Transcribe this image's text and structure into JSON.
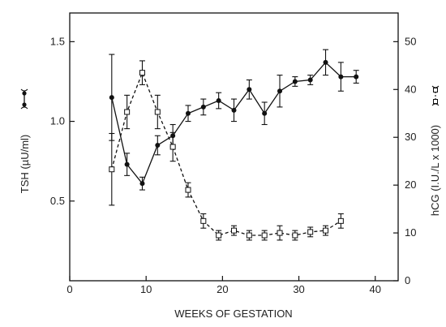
{
  "chart_data": {
    "type": "line",
    "title": "",
    "xlabel": "WEEKS OF GESTATION",
    "ylabel_left": "TSH (µU/ml)",
    "ylabel_right": "hCG (I.U./L x 1000)",
    "xlim": [
      0,
      43
    ],
    "ylim_left": [
      0,
      1.68
    ],
    "ylim_right": [
      0,
      56
    ],
    "x_ticks": [
      0,
      10,
      20,
      30,
      40
    ],
    "y_left_ticks": [
      0.5,
      1.0,
      1.5
    ],
    "y_right_ticks": [
      0,
      10,
      20,
      30,
      40,
      50
    ],
    "x_tick_labels": [
      "0",
      "10",
      "20",
      "30",
      "40"
    ],
    "y_left_tick_labels": [
      "0.5",
      "1.0",
      "1.5"
    ],
    "y_right_tick_labels": [
      "0",
      "10",
      "20",
      "30",
      "40",
      "50"
    ],
    "grid": false,
    "series": [
      {
        "id": "tsh",
        "axis": "left",
        "marker": "filled-circle",
        "line_style": "solid",
        "x": [
          5.5,
          7.5,
          9.5,
          11.5,
          13.5,
          15.5,
          17.5,
          19.5,
          21.5,
          23.5,
          25.5,
          27.5,
          29.5,
          31.5,
          33.5,
          35.5,
          37.5
        ],
        "y": [
          1.15,
          0.73,
          0.61,
          0.85,
          0.91,
          1.05,
          1.09,
          1.13,
          1.07,
          1.2,
          1.05,
          1.19,
          1.25,
          1.26,
          1.37,
          1.28,
          1.28
        ],
        "err": [
          0.27,
          0.07,
          0.04,
          0.06,
          0.07,
          0.05,
          0.05,
          0.05,
          0.07,
          0.06,
          0.07,
          0.1,
          0.03,
          0.03,
          0.08,
          0.09,
          0.04
        ]
      },
      {
        "id": "hcg",
        "axis": "right",
        "marker": "open-square",
        "line_style": "dashed",
        "x": [
          5.5,
          7.5,
          9.5,
          11.5,
          13.5,
          15.5,
          17.5,
          19.5,
          21.5,
          23.5,
          25.5,
          27.5,
          29.5,
          31.5,
          33.5,
          35.5
        ],
        "y": [
          23.3,
          35.3,
          43.5,
          35.3,
          28.0,
          19.0,
          12.5,
          9.5,
          10.5,
          9.5,
          9.5,
          10.0,
          9.5,
          10.2,
          10.5,
          12.5
        ],
        "err": [
          7.5,
          3.5,
          2.5,
          3.5,
          3.0,
          1.5,
          1.5,
          1.0,
          1.0,
          1.0,
          1.0,
          1.5,
          1.0,
          1.0,
          1.0,
          1.5
        ]
      }
    ]
  }
}
